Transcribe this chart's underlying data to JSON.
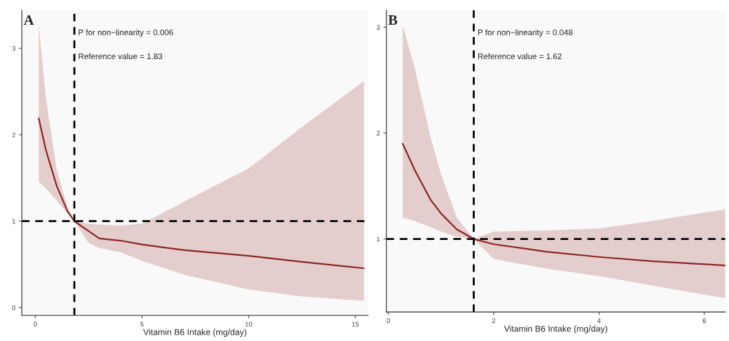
{
  "chart_data": [
    {
      "type": "line",
      "xlabel": "Vitamin B6 Intake (mg/day)",
      "xlim": [
        -0.63,
        15.6
      ],
      "ylim": [
        -0.09,
        3.44
      ],
      "xticks": [
        0,
        5,
        10,
        15
      ],
      "yticks": [
        0,
        1,
        2,
        3
      ],
      "grid": false,
      "legend": false,
      "series": [
        {
          "color": "#8b2320",
          "x": [
            0.16,
            0.5,
            1.0,
            1.5,
            1.83,
            2.5,
            3,
            4,
            5,
            7,
            10,
            12.5,
            15.4
          ],
          "values": [
            2.19,
            1.82,
            1.41,
            1.12,
            1.0,
            0.885,
            0.8,
            0.775,
            0.73,
            0.665,
            0.6,
            0.53,
            0.455
          ],
          "lower": [
            1.46,
            1.38,
            1.24,
            1.09,
            1.0,
            0.75,
            0.69,
            0.64,
            0.54,
            0.38,
            0.21,
            0.13,
            0.08
          ],
          "upper": [
            3.27,
            2.42,
            1.6,
            1.16,
            1.0,
            0.97,
            0.96,
            0.95,
            0.97,
            1.23,
            1.61,
            2.09,
            2.62
          ]
        }
      ],
      "ref_lines": [
        {
          "axis": "x",
          "value": 1.83,
          "color": "#000000",
          "line_style": "dashed"
        },
        {
          "axis": "y",
          "value": 1,
          "color": "#000000",
          "line_style": "dashed"
        }
      ],
      "annotations": [
        "A",
        "P for non−linearity = 0.006",
        "Reference value = 1.83"
      ]
    },
    {
      "type": "line",
      "xlabel": "Vitamin B6 Intake (mg/day)",
      "xlim": [
        -0.04,
        6.4
      ],
      "ylim": [
        0.31,
        3.16
      ],
      "xticks": [
        0,
        2,
        4,
        6
      ],
      "yticks": [
        1,
        2,
        3
      ],
      "grid": false,
      "legend": false,
      "series": [
        {
          "color": "#8b2320",
          "x": [
            0.27,
            0.5,
            0.8,
            1.0,
            1.3,
            1.62,
            2,
            3,
            4,
            5,
            6.4
          ],
          "values": [
            1.9,
            1.65,
            1.37,
            1.24,
            1.09,
            1.0,
            0.95,
            0.88,
            0.83,
            0.79,
            0.75
          ],
          "lower": [
            1.2,
            1.17,
            1.11,
            1.07,
            1.02,
            1.0,
            0.81,
            0.72,
            0.65,
            0.56,
            0.44
          ],
          "upper": [
            3.02,
            2.61,
            1.96,
            1.61,
            1.2,
            1.0,
            1.07,
            1.08,
            1.1,
            1.17,
            1.28
          ]
        }
      ],
      "ref_lines": [
        {
          "axis": "x",
          "value": 1.62,
          "color": "#000000",
          "line_style": "dashed"
        },
        {
          "axis": "y",
          "value": 1,
          "color": "#000000",
          "line_style": "dashed"
        }
      ],
      "annotations": [
        "B",
        "P for non−linearity = 0.048",
        "Reference value = 1.62"
      ]
    }
  ]
}
